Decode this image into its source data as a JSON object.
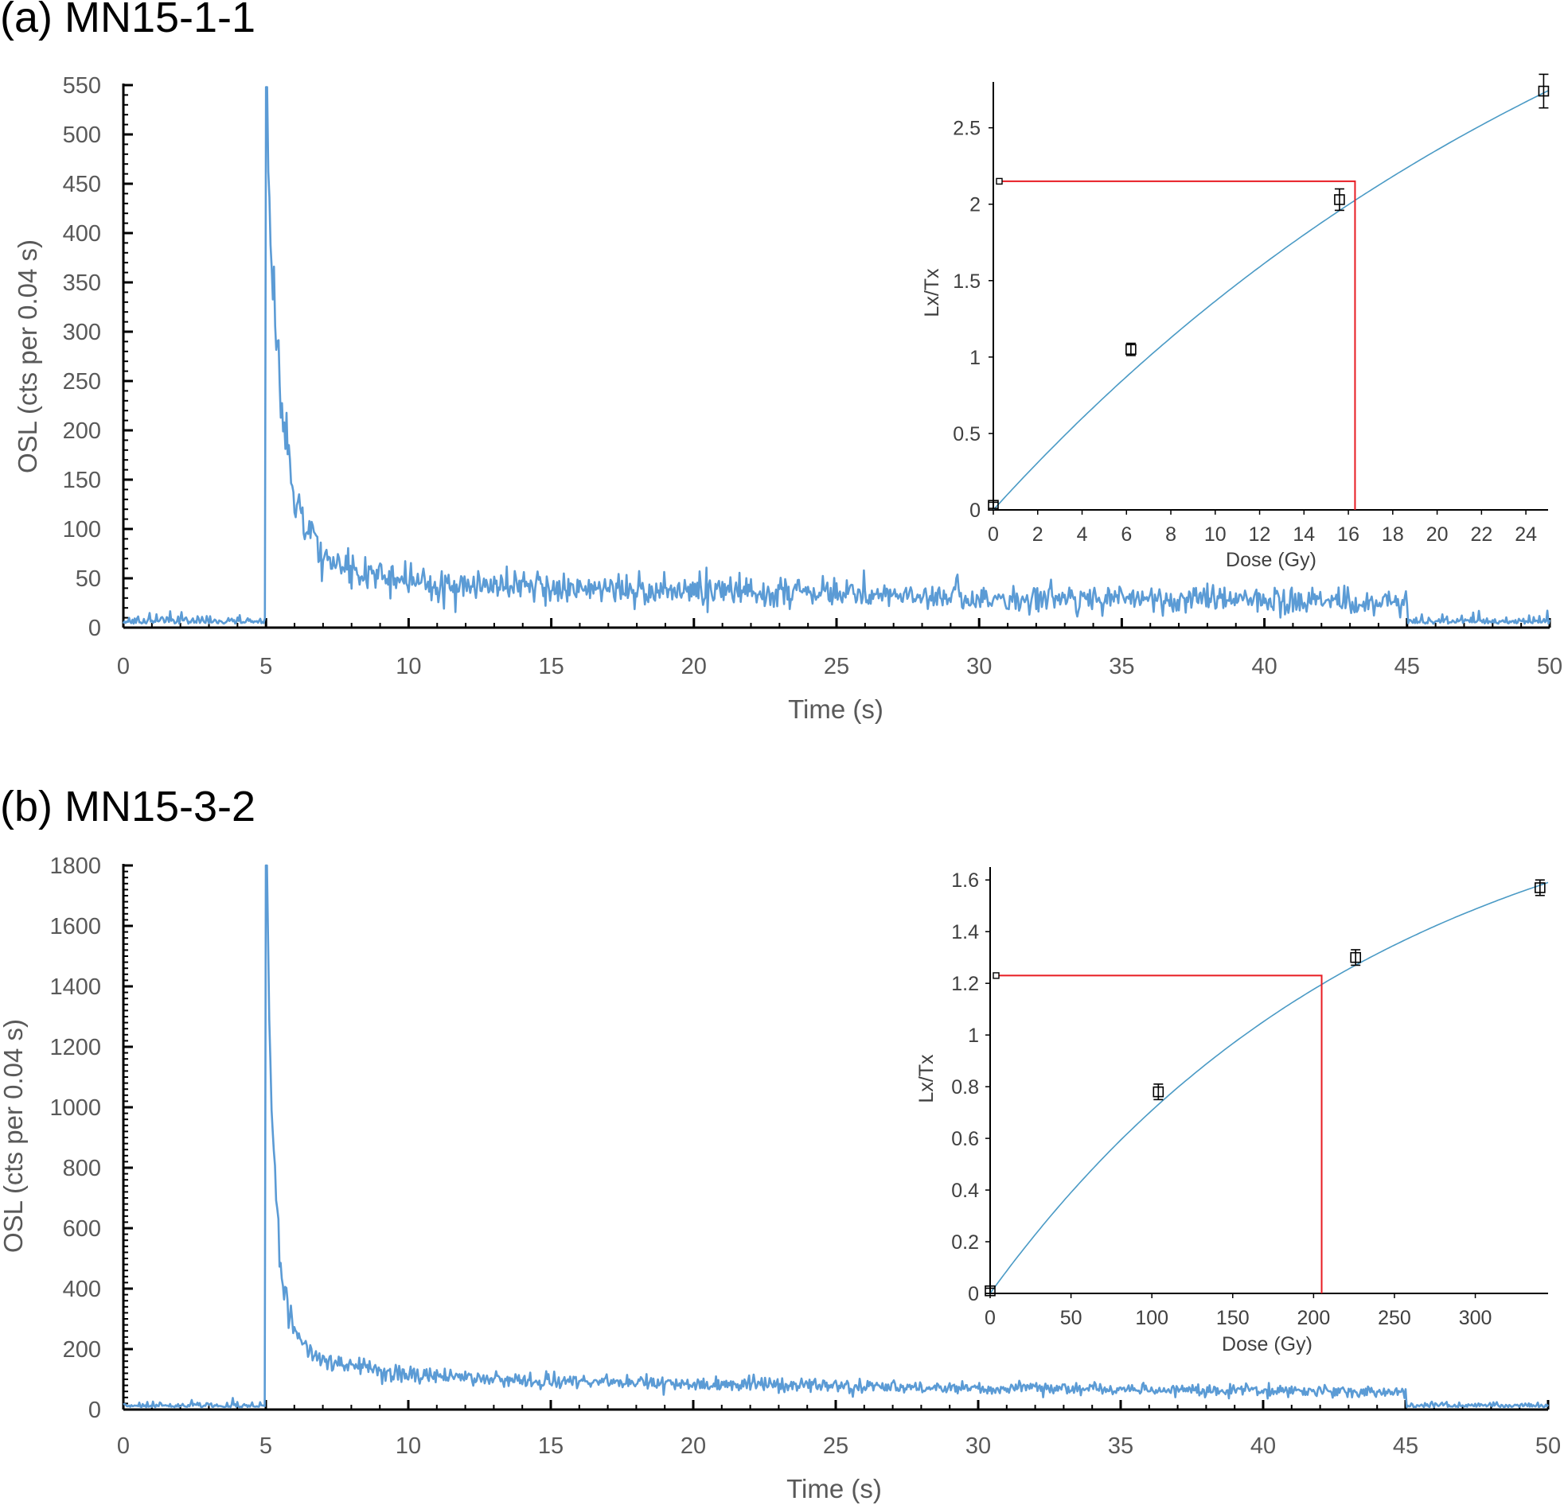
{
  "chart_data": [
    {
      "type": "line",
      "panel_label": "(a) MN15-1-1",
      "xlabel": "Time (s)",
      "ylabel": "OSL  (cts per 0.04 s)",
      "xlim": [
        0,
        50
      ],
      "ylim": [
        0,
        550
      ],
      "xticks": [
        0,
        5,
        10,
        15,
        20,
        25,
        30,
        35,
        40,
        45,
        50
      ],
      "yticks": [
        0,
        50,
        100,
        150,
        200,
        250,
        300,
        350,
        400,
        450,
        500,
        550
      ],
      "series_color": "#5b9bd5",
      "signal": {
        "stim_start": 5,
        "stim_end": 45,
        "peak": 548,
        "background": 4,
        "curve": [
          [
            5.0,
            548
          ],
          [
            5.1,
            470
          ],
          [
            5.2,
            360
          ],
          [
            5.3,
            330
          ],
          [
            5.4,
            290
          ],
          [
            5.5,
            250
          ],
          [
            5.6,
            215
          ],
          [
            5.8,
            175
          ],
          [
            6.0,
            140
          ],
          [
            6.3,
            110
          ],
          [
            6.6,
            90
          ],
          [
            7.0,
            75
          ],
          [
            7.5,
            65
          ],
          [
            8.0,
            58
          ],
          [
            9.0,
            50
          ],
          [
            10,
            46
          ],
          [
            12,
            43
          ],
          [
            15,
            40
          ],
          [
            20,
            37
          ],
          [
            25,
            34
          ],
          [
            30,
            31
          ],
          [
            35,
            29
          ],
          [
            40,
            27
          ],
          [
            45,
            25
          ]
        ]
      },
      "inset": {
        "xlabel": "Dose (Gy)",
        "ylabel": "Lx/Tx",
        "xlim": [
          0,
          25
        ],
        "ylim": [
          0,
          2.8
        ],
        "xticks": [
          0,
          2,
          4,
          6,
          8,
          10,
          12,
          14,
          16,
          18,
          20,
          22,
          24
        ],
        "yticks": [
          0,
          0.5,
          1,
          1.5,
          2,
          2.5
        ],
        "ytick_labels": [
          "0",
          "0.5",
          "1",
          "1.5",
          "2",
          "2.5"
        ],
        "points": [
          {
            "dose": 0,
            "ratio": 0.03,
            "err": 0.02
          },
          {
            "dose": 6.2,
            "ratio": 1.05,
            "err": 0.04
          },
          {
            "dose": 15.6,
            "ratio": 2.03,
            "err": 0.07
          },
          {
            "dose": 24.8,
            "ratio": 2.74,
            "err": 0.11
          }
        ],
        "fit": {
          "a": 4.962,
          "b": 0.03218
        },
        "natural": {
          "ratio": 2.15,
          "de": 16.3
        },
        "curve_color": "#4a9ac5",
        "de_color": "#e81c23"
      }
    },
    {
      "type": "line",
      "panel_label": "(b) MN15-3-2",
      "xlabel": "Time (s)",
      "ylabel": "OSL  (cts per 0.04 s)",
      "xlim": [
        0,
        50
      ],
      "ylim": [
        0,
        1800
      ],
      "xticks": [
        0,
        5,
        10,
        15,
        20,
        25,
        30,
        35,
        40,
        45,
        50
      ],
      "yticks": [
        0,
        200,
        400,
        600,
        800,
        1000,
        1200,
        1400,
        1600,
        1800
      ],
      "series_color": "#5b9bd5",
      "signal": {
        "stim_start": 5,
        "stim_end": 45,
        "peak": 1800,
        "background": 8,
        "curve": [
          [
            5.0,
            1800
          ],
          [
            5.1,
            1400
          ],
          [
            5.2,
            1000
          ],
          [
            5.3,
            800
          ],
          [
            5.4,
            650
          ],
          [
            5.5,
            500
          ],
          [
            5.6,
            420
          ],
          [
            5.8,
            330
          ],
          [
            6.0,
            270
          ],
          [
            6.3,
            210
          ],
          [
            6.6,
            180
          ],
          [
            7.0,
            165
          ],
          [
            7.5,
            155
          ],
          [
            8.0,
            145
          ],
          [
            9.0,
            130
          ],
          [
            10,
            120
          ],
          [
            12,
            105
          ],
          [
            15,
            95
          ],
          [
            20,
            85
          ],
          [
            25,
            78
          ],
          [
            30,
            72
          ],
          [
            35,
            68
          ],
          [
            40,
            64
          ],
          [
            45,
            60
          ]
        ]
      },
      "inset": {
        "xlabel": "Dose (Gy)",
        "ylabel": "Lx/Tx",
        "xlim": [
          0,
          345
        ],
        "ylim": [
          0,
          1.65
        ],
        "xticks": [
          0,
          50,
          100,
          150,
          200,
          250,
          300
        ],
        "yticks": [
          0,
          0.2,
          0.4,
          0.6,
          0.8,
          1,
          1.2,
          1.4,
          1.6
        ],
        "ytick_labels": [
          "0",
          "0.2",
          "0.4",
          "0.6",
          "0.8",
          "1",
          "1.2",
          "1.4",
          "1.6"
        ],
        "points": [
          {
            "dose": 0,
            "ratio": 0.01,
            "err": 0.01
          },
          {
            "dose": 104,
            "ratio": 0.78,
            "err": 0.03
          },
          {
            "dose": 226,
            "ratio": 1.3,
            "err": 0.03
          },
          {
            "dose": 340,
            "ratio": 1.57,
            "err": 0.03
          }
        ],
        "fit": {
          "a": 2.095,
          "b": 0.004125
        },
        "natural": {
          "ratio": 1.23,
          "de": 205
        },
        "curve_color": "#4a9ac5",
        "de_color": "#e81c23"
      }
    }
  ]
}
